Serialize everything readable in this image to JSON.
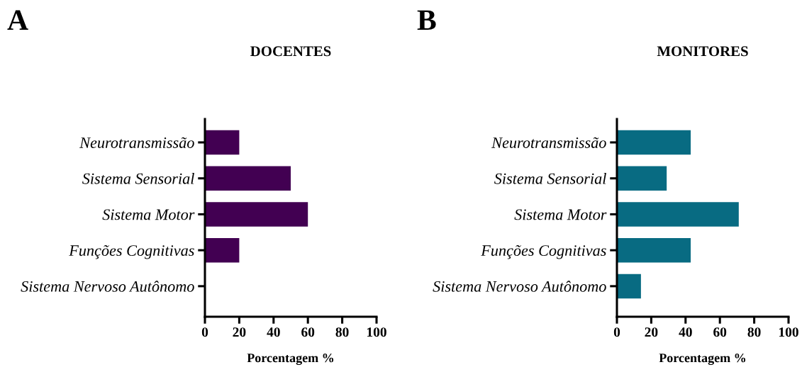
{
  "chart_data": [
    {
      "type": "bar",
      "orientation": "horizontal",
      "title": "DOCENTES",
      "xlabel": "Porcentagem %",
      "annotations": [
        "A"
      ],
      "categories": [
        "Neurotransmissão",
        "Sistema Sensorial",
        "Sistema Motor",
        "Funções Cognitivas",
        "Sistema Nervoso Autônomo"
      ],
      "values": [
        20,
        50,
        60,
        20,
        0
      ],
      "color": "#420052",
      "xlim": [
        0,
        100
      ],
      "xticks": [
        0,
        20,
        40,
        60,
        80,
        100
      ],
      "grid": false,
      "legend": false
    },
    {
      "type": "bar",
      "orientation": "horizontal",
      "title": "MONITORES",
      "xlabel": "Porcentagem %",
      "annotations": [
        "B"
      ],
      "categories": [
        "Neurotransmissão",
        "Sistema Sensorial",
        "Sistema Motor",
        "Funções Cognitivas",
        "Sistema Nervoso Autônomo"
      ],
      "values": [
        43,
        29,
        71,
        43,
        14
      ],
      "color": "#086b82",
      "xlim": [
        0,
        100
      ],
      "xticks": [
        0,
        20,
        40,
        60,
        80,
        100
      ],
      "grid": false,
      "legend": false
    }
  ]
}
